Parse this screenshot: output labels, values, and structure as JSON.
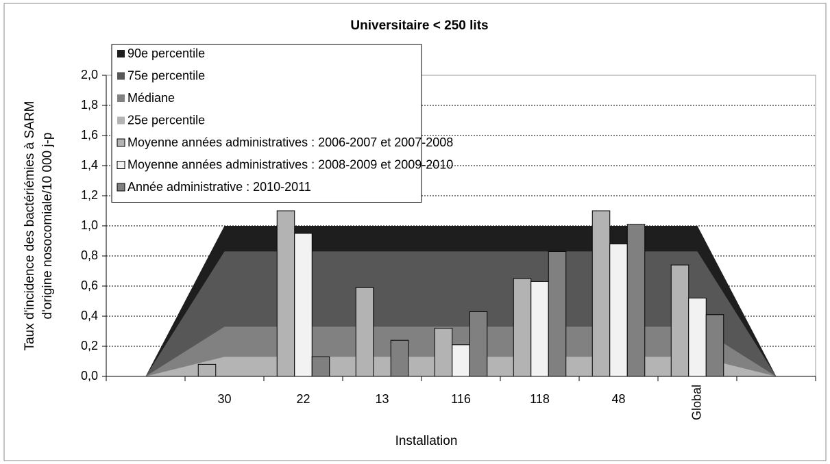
{
  "chart_data": {
    "type": "bar",
    "title": "Universitaire < 250 lits",
    "x_label": "Installation",
    "y_label": [
      "Taux d'incidence des bactériémies à SARM",
      "d'origine nosocomiale/10 000 j-p"
    ],
    "categories": [
      null,
      "30",
      "22",
      "13",
      "116",
      "118",
      "48",
      "Global",
      null
    ],
    "ylim": [
      0,
      2.0
    ],
    "yticks": [
      {
        "value": 0,
        "label": "0,0"
      },
      {
        "value": 0.2,
        "label": "0,2"
      },
      {
        "value": 0.4,
        "label": "0,4"
      },
      {
        "value": 0.6,
        "label": "0,6"
      },
      {
        "value": 0.8,
        "label": "0,8"
      },
      {
        "value": 1.0,
        "label": "1,0"
      },
      {
        "value": 1.2,
        "label": "1,2"
      },
      {
        "value": 1.4,
        "label": "1,4"
      },
      {
        "value": 1.6,
        "label": "1,6"
      },
      {
        "value": 1.8,
        "label": "1,8"
      },
      {
        "value": 2.0,
        "label": "2,0"
      }
    ],
    "grid": true,
    "legend": "top-left",
    "series": [
      {
        "name": "90e percentile",
        "type": "area",
        "color": "#1e1e1e",
        "values": [
          0,
          1.0,
          1.0,
          1.0,
          1.0,
          1.0,
          1.0,
          1.0,
          0
        ]
      },
      {
        "name": "75e percentile",
        "type": "area",
        "color": "#575757",
        "values": [
          0,
          0.83,
          0.83,
          0.83,
          0.83,
          0.83,
          0.83,
          0.83,
          0
        ]
      },
      {
        "name": "Médiane",
        "type": "area",
        "color": "#818181",
        "values": [
          0,
          0.33,
          0.33,
          0.33,
          0.33,
          0.33,
          0.33,
          0.33,
          0
        ]
      },
      {
        "name": "25e percentile",
        "type": "area",
        "color": "#b4b4b4",
        "values": [
          0,
          0.13,
          0.13,
          0.13,
          0.13,
          0.13,
          0.13,
          0.13,
          0
        ]
      },
      {
        "name": "Moyenne années administratives : 2006-2007 et 2007-2008",
        "type": "bar",
        "color": "#b3b3b3",
        "values": [
          null,
          0.08,
          1.1,
          0.59,
          0.32,
          0.65,
          1.1,
          0.74,
          null
        ]
      },
      {
        "name": "Moyenne années administratives : 2008-2009 et 2009-2010",
        "type": "bar",
        "color": "#f2f2f2",
        "values": [
          null,
          null,
          0.95,
          null,
          0.21,
          0.63,
          0.88,
          0.52,
          null
        ]
      },
      {
        "name": "Année administrative : 2010-2011",
        "type": "bar",
        "color": "#808080",
        "values": [
          null,
          null,
          0.13,
          0.24,
          0.43,
          0.83,
          1.01,
          0.41,
          null
        ]
      }
    ]
  }
}
